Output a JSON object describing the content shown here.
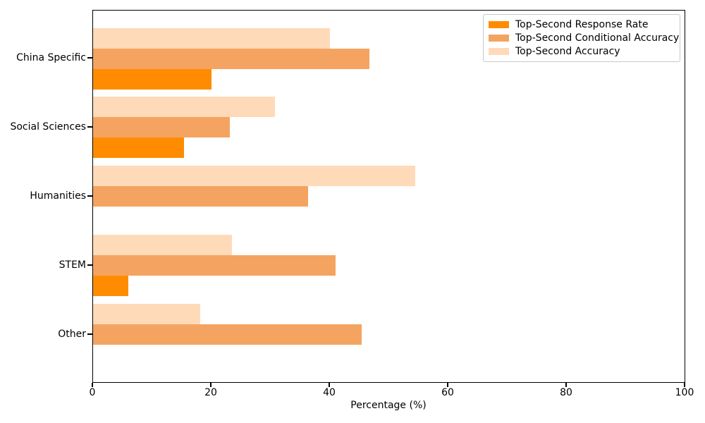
{
  "chart_data": {
    "type": "bar",
    "orientation": "horizontal",
    "title": "",
    "xlabel": "Percentage (%)",
    "ylabel": "",
    "xlim": [
      0,
      100
    ],
    "xticks": [
      0,
      20,
      40,
      60,
      80,
      100
    ],
    "grid": false,
    "legend_position": "upper right",
    "categories": [
      "China Specific",
      "Social Sciences",
      "Humanities",
      "STEM",
      "Other"
    ],
    "bar_order_top_to_bottom": [
      "Top-Second Accuracy",
      "Top-Second Conditional Accuracy",
      "Top-Second Response Rate"
    ],
    "series": [
      {
        "name": "Top-Second Response Rate",
        "color": "#FF8C00",
        "values": [
          20.0,
          15.4,
          0.0,
          5.9,
          0.0
        ]
      },
      {
        "name": "Top-Second Conditional Accuracy",
        "color": "#F4A460",
        "values": [
          46.7,
          23.1,
          36.3,
          41.0,
          45.4
        ]
      },
      {
        "name": "Top-Second Accuracy",
        "color": "#FFDAB9",
        "values": [
          40.0,
          30.7,
          54.5,
          23.5,
          18.1
        ]
      }
    ]
  }
}
